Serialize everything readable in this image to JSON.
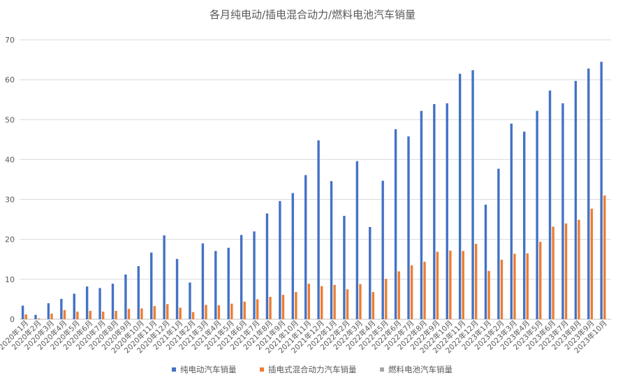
{
  "chart_data": {
    "type": "bar",
    "title": "各月纯电动/插电混合动力/燃料电池汽车销量",
    "xlabel": "",
    "ylabel": "",
    "ylim": [
      0,
      70
    ],
    "yticks": [
      0,
      10,
      20,
      30,
      40,
      50,
      60,
      70
    ],
    "grid": true,
    "legend_position": "bottom",
    "categories": [
      "2020年1月",
      "2020年2月",
      "2020年3月",
      "2020年4月",
      "2020年5月",
      "2020年6月",
      "2020年7月",
      "2020年8月",
      "2020年9月",
      "2020年10月",
      "2020年11月",
      "2020年12月",
      "2021年1月",
      "2021年2月",
      "2021年3月",
      "2021年4月",
      "2021年5月",
      "2021年6月",
      "2021年7月",
      "2021年8月",
      "2021年9月",
      "2021年10月",
      "2021年11月",
      "2021年12月",
      "2022年1月",
      "2022年2月",
      "2022年3月",
      "2022年4月",
      "2022年5月",
      "2022年6月",
      "2022年7月",
      "2022年8月",
      "2022年9月",
      "2022年10月",
      "2022年11月",
      "2022年12月",
      "2023年1月",
      "2023年2月",
      "2023年3月",
      "2023年4月",
      "2023年5月",
      "2023年6月",
      "2023年7月",
      "2023年8月",
      "2023年9月",
      "2023年10月"
    ],
    "series": [
      {
        "name": "纯电动汽车销量",
        "color": "#4472C4",
        "values": [
          3.4,
          1.1,
          4.0,
          5.1,
          6.4,
          8.2,
          7.8,
          8.9,
          11.2,
          13.3,
          16.7,
          21.0,
          15.1,
          9.2,
          19.0,
          17.1,
          17.9,
          21.1,
          22.0,
          26.5,
          29.6,
          31.6,
          36.1,
          44.8,
          34.6,
          25.9,
          39.6,
          23.1,
          34.7,
          47.6,
          45.8,
          52.2,
          53.9,
          54.1,
          61.5,
          62.4,
          28.7,
          37.7,
          49.0,
          47.0,
          52.2,
          57.3,
          54.1,
          59.7,
          62.8,
          64.5
        ]
      },
      {
        "name": "插电式混合动力汽车销量",
        "color": "#ED7D31",
        "values": [
          1.2,
          0.2,
          1.4,
          2.3,
          1.9,
          2.1,
          1.9,
          2.1,
          2.6,
          2.7,
          3.3,
          3.8,
          2.9,
          1.8,
          3.6,
          3.5,
          3.9,
          4.4,
          5.0,
          5.6,
          6.1,
          6.8,
          8.9,
          8.3,
          8.6,
          7.5,
          8.8,
          6.8,
          10.1,
          12.0,
          13.5,
          14.4,
          16.9,
          17.2,
          17.1,
          18.9,
          12.1,
          14.9,
          16.4,
          16.5,
          19.4,
          23.2,
          24.0,
          24.9,
          27.7,
          31.0
        ]
      },
      {
        "name": "燃料电池汽车销量",
        "color": "#A5A5A5",
        "values": [
          0,
          0,
          0,
          0,
          0,
          0,
          0,
          0,
          0,
          0,
          0,
          0,
          0,
          0,
          0,
          0,
          0,
          0,
          0,
          0,
          0,
          0,
          0,
          0,
          0,
          0,
          0,
          0,
          0,
          0,
          0,
          0,
          0,
          0,
          0,
          0,
          0,
          0,
          0,
          0,
          0,
          0,
          0,
          0,
          0,
          0
        ]
      }
    ]
  }
}
